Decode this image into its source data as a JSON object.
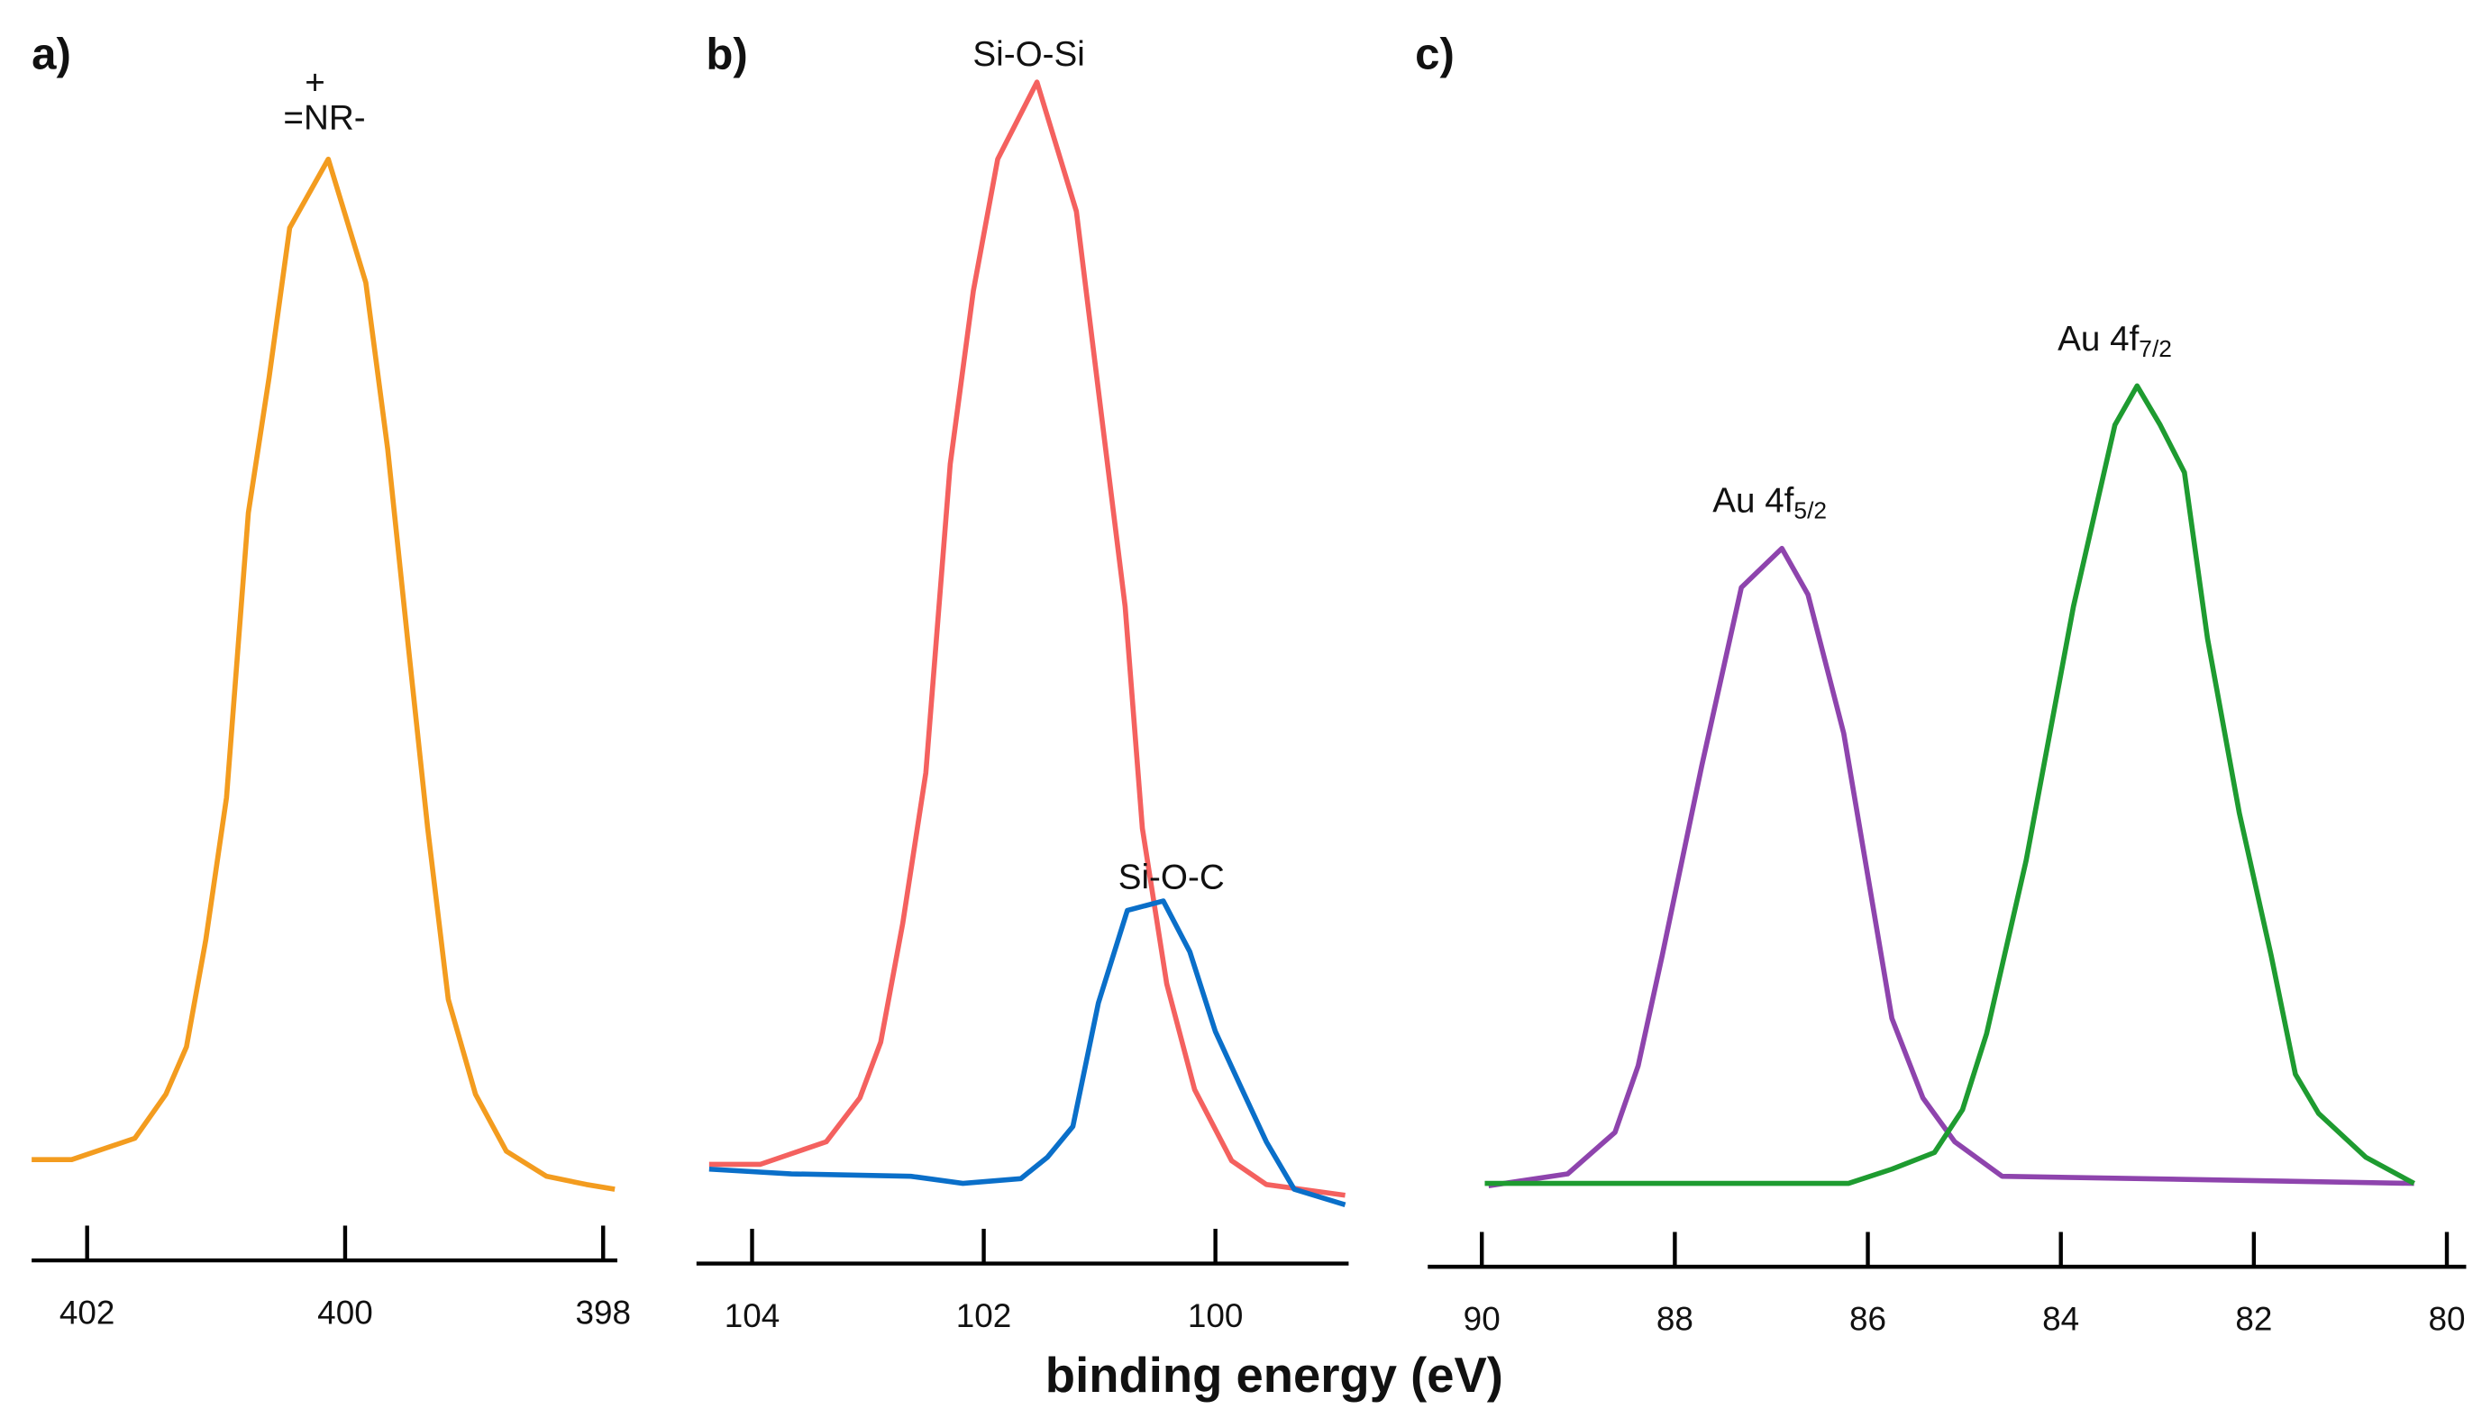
{
  "xlabel": "binding energy (eV)",
  "chart_data": [
    {
      "type": "line",
      "title": "a)",
      "xlim": [
        402.43,
        397.89
      ],
      "ylim": [
        0,
        100
      ],
      "xticks": [
        402,
        400,
        398
      ],
      "annotations": [
        {
          "text": "=NR-",
          "sup": "+"
        }
      ],
      "series": [
        {
          "color": "#f39c1f",
          "x": [
            402.43,
            402.12,
            401.63,
            401.39,
            401.23,
            401.08,
            400.92,
            400.75,
            400.59,
            400.43,
            400.13,
            399.84,
            399.67,
            399.51,
            399.36,
            399.2,
            398.99,
            398.75,
            398.44,
            398.13,
            397.91
          ],
          "values": [
            8.5,
            8.5,
            10.3,
            14,
            18,
            27,
            39,
            63,
            74.4,
            87,
            92.8,
            82.4,
            68.4,
            51.7,
            36.4,
            22,
            14,
            9.2,
            7.1,
            6.4,
            6
          ]
        }
      ]
    },
    {
      "type": "line",
      "title": "b)",
      "xlim": [
        104.48,
        98.85
      ],
      "ylim": [
        0,
        100
      ],
      "xticks": [
        104,
        102,
        100
      ],
      "annotations": [
        {
          "text": "Si-O-Si"
        },
        {
          "text": "Si-O-C"
        }
      ],
      "series": [
        {
          "color": "#f4615f",
          "x": [
            104.37,
            103.93,
            103.36,
            103.07,
            102.89,
            102.7,
            102.5,
            102.29,
            102.09,
            101.88,
            101.54,
            101.2,
            100.99,
            100.78,
            100.63,
            100.42,
            100.18,
            99.86,
            99.56,
            98.88
          ],
          "values": [
            8.1,
            8.1,
            10,
            13.7,
            18.4,
            28.4,
            41.1,
            67.1,
            81.7,
            92.8,
            99.3,
            88.4,
            71.7,
            55.1,
            36.4,
            23.3,
            14.4,
            8.4,
            6.4,
            5.5
          ]
        },
        {
          "color": "#0a6fc9",
          "x": [
            104.37,
            103.66,
            102.63,
            102.18,
            101.68,
            101.45,
            101.23,
            101.01,
            100.76,
            100.45,
            100.22,
            100.0,
            99.77,
            99.56,
            99.32,
            98.88
          ],
          "values": [
            7.7,
            7.3,
            7.1,
            6.5,
            6.9,
            8.7,
            11.3,
            21.7,
            29.5,
            30.3,
            26,
            19.3,
            14.4,
            10,
            6,
            4.7
          ]
        }
      ]
    },
    {
      "type": "line",
      "title": "c)",
      "xlim": [
        90.56,
        79.8
      ],
      "ylim": [
        0,
        100
      ],
      "xticks": [
        90,
        88,
        86,
        84,
        82,
        80
      ],
      "annotations": [
        {
          "text": "Au 4f",
          "sub": "5/2"
        },
        {
          "text": "Au 4f",
          "sub": "7/2"
        }
      ],
      "series": [
        {
          "color": "#8e44ad",
          "x": [
            89.93,
            89.11,
            88.62,
            88.38,
            88.13,
            87.72,
            87.31,
            86.89,
            86.62,
            86.25,
            85.75,
            85.43,
            85.1,
            84.61,
            80.34
          ],
          "values": [
            6.3,
            7.3,
            10.8,
            16.4,
            25.7,
            41.7,
            56.7,
            60,
            56.1,
            44.4,
            20.4,
            13.7,
            10,
            7.1,
            6.5
          ]
        },
        {
          "color": "#1e9b30",
          "x": [
            89.97,
            86.2,
            85.75,
            85.31,
            85.02,
            84.77,
            84.36,
            83.87,
            83.44,
            83.21,
            82.97,
            82.72,
            82.48,
            82.15,
            81.82,
            81.57,
            81.33,
            80.84,
            80.34
          ],
          "values": [
            6.5,
            6.5,
            7.7,
            9.1,
            12.7,
            19.1,
            33.7,
            55.1,
            70.4,
            73.7,
            70.4,
            66.4,
            52.4,
            37.7,
            25.7,
            15.7,
            12.4,
            8.7,
            6.5
          ]
        }
      ]
    }
  ]
}
